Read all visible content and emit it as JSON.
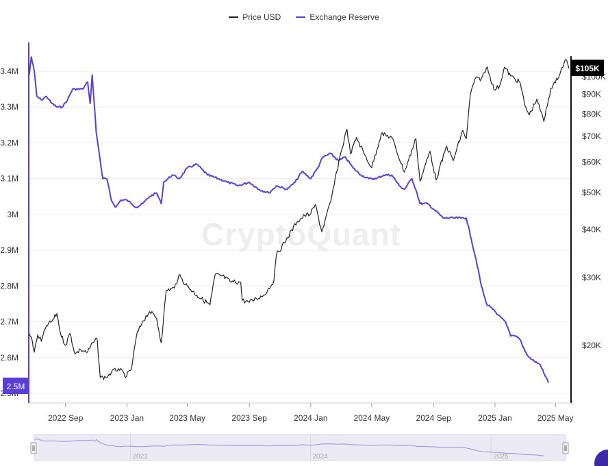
{
  "legend": {
    "price_label": "Price USD",
    "reserve_label": "Exchange Reserve"
  },
  "watermark": "CryptoQuant",
  "badges": {
    "price": "$105K",
    "reserve": "2.5M"
  },
  "colors": {
    "price": "#222222",
    "reserve": "#5a3fd6",
    "grid": "#eeeeee",
    "axis_left": "#5a3fd6",
    "axis_right": "#111111",
    "navigator_fill": "#eceaf4",
    "navigator_line": "#a79be8"
  },
  "chart_data": {
    "type": "line",
    "x_axis": {
      "type": "date",
      "range": [
        "2022-06-20",
        "2025-06-01"
      ],
      "tick_labels": [
        {
          "date": "2022-09-01",
          "label": "2022 Sep"
        },
        {
          "date": "2023-01-01",
          "label": "2023 Jan"
        },
        {
          "date": "2023-05-01",
          "label": "2023 May"
        },
        {
          "date": "2023-09-01",
          "label": "2023 Sep"
        },
        {
          "date": "2024-01-01",
          "label": "2024 Jan"
        },
        {
          "date": "2024-05-01",
          "label": "2024 May"
        },
        {
          "date": "2024-09-01",
          "label": "2024 Sep"
        },
        {
          "date": "2025-01-01",
          "label": "2025 Jan"
        },
        {
          "date": "2025-05-01",
          "label": "2025 May"
        }
      ]
    },
    "y_left": {
      "scale": "linear",
      "range": [
        2500000,
        3450000
      ],
      "ticks": [
        {
          "value": 3400000,
          "label": "3.4M"
        },
        {
          "value": 3300000,
          "label": "3.3M"
        },
        {
          "value": 3200000,
          "label": "3.2M"
        },
        {
          "value": 3100000,
          "label": "3.1M"
        },
        {
          "value": 3000000,
          "label": "3M"
        },
        {
          "value": 2900000,
          "label": "2.9M"
        },
        {
          "value": 2800000,
          "label": "2.8M"
        },
        {
          "value": 2700000,
          "label": "2.7M"
        },
        {
          "value": 2600000,
          "label": "2.6M"
        },
        {
          "value": 2500000,
          "label": "2.5M"
        }
      ]
    },
    "y_right": {
      "scale": "log",
      "range": [
        15000,
        115000
      ],
      "ticks": [
        {
          "value": 100000,
          "label": "$100K"
        },
        {
          "value": 90000,
          "label": "$90K"
        },
        {
          "value": 80000,
          "label": "$80K"
        },
        {
          "value": 70000,
          "label": "$70K"
        },
        {
          "value": 60000,
          "label": "$60K"
        },
        {
          "value": 50000,
          "label": "$50K"
        },
        {
          "value": 40000,
          "label": "$40K"
        },
        {
          "value": 30000,
          "label": "$30K"
        },
        {
          "value": 20000,
          "label": "$20K"
        }
      ]
    },
    "series": [
      {
        "name": "Exchange Reserve",
        "axis": "left",
        "points": [
          [
            "2022-06-21",
            3390000
          ],
          [
            "2022-06-25",
            3440000
          ],
          [
            "2022-07-01",
            3400000
          ],
          [
            "2022-07-06",
            3330000
          ],
          [
            "2022-07-15",
            3320000
          ],
          [
            "2022-07-25",
            3330000
          ],
          [
            "2022-08-05",
            3310000
          ],
          [
            "2022-08-15",
            3300000
          ],
          [
            "2022-08-25",
            3300000
          ],
          [
            "2022-09-05",
            3320000
          ],
          [
            "2022-09-15",
            3350000
          ],
          [
            "2022-09-25",
            3350000
          ],
          [
            "2022-10-05",
            3350000
          ],
          [
            "2022-10-15",
            3370000
          ],
          [
            "2022-10-20",
            3310000
          ],
          [
            "2022-10-24",
            3390000
          ],
          [
            "2022-11-01",
            3230000
          ],
          [
            "2022-11-08",
            3160000
          ],
          [
            "2022-11-14",
            3100000
          ],
          [
            "2022-11-22",
            3100000
          ],
          [
            "2022-12-01",
            3040000
          ],
          [
            "2022-12-10",
            3020000
          ],
          [
            "2022-12-20",
            3040000
          ],
          [
            "2023-01-01",
            3040000
          ],
          [
            "2023-01-10",
            3030000
          ],
          [
            "2023-01-20",
            3020000
          ],
          [
            "2023-02-01",
            3030000
          ],
          [
            "2023-02-15",
            3050000
          ],
          [
            "2023-03-01",
            3060000
          ],
          [
            "2023-03-10",
            3030000
          ],
          [
            "2023-03-15",
            3090000
          ],
          [
            "2023-04-01",
            3110000
          ],
          [
            "2023-04-15",
            3100000
          ],
          [
            "2023-05-01",
            3130000
          ],
          [
            "2023-05-20",
            3140000
          ],
          [
            "2023-06-10",
            3110000
          ],
          [
            "2023-07-01",
            3100000
          ],
          [
            "2023-07-20",
            3090000
          ],
          [
            "2023-08-10",
            3080000
          ],
          [
            "2023-09-01",
            3090000
          ],
          [
            "2023-09-20",
            3070000
          ],
          [
            "2023-10-10",
            3060000
          ],
          [
            "2023-10-25",
            3080000
          ],
          [
            "2023-11-15",
            3070000
          ],
          [
            "2023-12-01",
            3090000
          ],
          [
            "2023-12-15",
            3120000
          ],
          [
            "2024-01-01",
            3100000
          ],
          [
            "2024-01-15",
            3130000
          ],
          [
            "2024-01-25",
            3160000
          ],
          [
            "2024-02-10",
            3170000
          ],
          [
            "2024-02-25",
            3150000
          ],
          [
            "2024-03-10",
            3160000
          ],
          [
            "2024-03-25",
            3130000
          ],
          [
            "2024-04-10",
            3110000
          ],
          [
            "2024-04-25",
            3100000
          ],
          [
            "2024-05-10",
            3100000
          ],
          [
            "2024-05-25",
            3110000
          ],
          [
            "2024-06-10",
            3110000
          ],
          [
            "2024-06-25",
            3080000
          ],
          [
            "2024-07-05",
            3070000
          ],
          [
            "2024-07-20",
            3100000
          ],
          [
            "2024-07-30",
            3060000
          ],
          [
            "2024-08-05",
            3030000
          ],
          [
            "2024-08-20",
            3030000
          ],
          [
            "2024-09-05",
            3010000
          ],
          [
            "2024-09-20",
            2990000
          ],
          [
            "2024-10-10",
            2990000
          ],
          [
            "2024-10-25",
            2990000
          ],
          [
            "2024-11-05",
            2990000
          ],
          [
            "2024-11-15",
            2930000
          ],
          [
            "2024-11-25",
            2870000
          ],
          [
            "2024-12-05",
            2800000
          ],
          [
            "2024-12-15",
            2750000
          ],
          [
            "2024-12-25",
            2740000
          ],
          [
            "2025-01-05",
            2720000
          ],
          [
            "2025-01-15",
            2710000
          ],
          [
            "2025-01-22",
            2700000
          ],
          [
            "2025-02-01",
            2660000
          ],
          [
            "2025-02-10",
            2660000
          ],
          [
            "2025-02-20",
            2650000
          ],
          [
            "2025-03-01",
            2620000
          ],
          [
            "2025-03-10",
            2600000
          ],
          [
            "2025-03-20",
            2590000
          ],
          [
            "2025-04-01",
            2580000
          ],
          [
            "2025-04-10",
            2550000
          ],
          [
            "2025-04-18",
            2530000
          ]
        ]
      },
      {
        "name": "Price USD",
        "axis": "right",
        "points": [
          [
            "2022-06-21",
            21500
          ],
          [
            "2022-06-25",
            21000
          ],
          [
            "2022-07-01",
            19200
          ],
          [
            "2022-07-08",
            21300
          ],
          [
            "2022-07-15",
            20500
          ],
          [
            "2022-07-25",
            22500
          ],
          [
            "2022-08-05",
            23100
          ],
          [
            "2022-08-15",
            24200
          ],
          [
            "2022-08-22",
            21500
          ],
          [
            "2022-09-01",
            20000
          ],
          [
            "2022-09-10",
            21500
          ],
          [
            "2022-09-20",
            19000
          ],
          [
            "2022-10-01",
            19500
          ],
          [
            "2022-10-15",
            19200
          ],
          [
            "2022-10-25",
            20300
          ],
          [
            "2022-11-03",
            20700
          ],
          [
            "2022-11-09",
            16500
          ],
          [
            "2022-11-20",
            16500
          ],
          [
            "2022-12-01",
            17000
          ],
          [
            "2022-12-15",
            17400
          ],
          [
            "2022-12-31",
            16600
          ],
          [
            "2023-01-10",
            17400
          ],
          [
            "2023-01-20",
            21200
          ],
          [
            "2023-02-01",
            23100
          ],
          [
            "2023-02-15",
            24500
          ],
          [
            "2023-03-01",
            23500
          ],
          [
            "2023-03-10",
            20300
          ],
          [
            "2023-03-20",
            27800
          ],
          [
            "2023-04-05",
            28200
          ],
          [
            "2023-04-14",
            30400
          ],
          [
            "2023-05-01",
            28500
          ],
          [
            "2023-05-20",
            27000
          ],
          [
            "2023-06-15",
            25500
          ],
          [
            "2023-06-25",
            30500
          ],
          [
            "2023-07-10",
            30300
          ],
          [
            "2023-07-25",
            29300
          ],
          [
            "2023-08-15",
            29200
          ],
          [
            "2023-08-18",
            26200
          ],
          [
            "2023-09-01",
            25900
          ],
          [
            "2023-09-15",
            26500
          ],
          [
            "2023-09-30",
            27000
          ],
          [
            "2023-10-20",
            29500
          ],
          [
            "2023-10-25",
            34500
          ],
          [
            "2023-11-10",
            37000
          ],
          [
            "2023-12-05",
            42000
          ],
          [
            "2023-12-20",
            43500
          ],
          [
            "2024-01-01",
            44000
          ],
          [
            "2024-01-10",
            46500
          ],
          [
            "2024-01-23",
            39500
          ],
          [
            "2024-02-10",
            47500
          ],
          [
            "2024-02-28",
            62000
          ],
          [
            "2024-03-13",
            73000
          ],
          [
            "2024-03-20",
            63000
          ],
          [
            "2024-04-01",
            69500
          ],
          [
            "2024-04-15",
            63500
          ],
          [
            "2024-05-01",
            58000
          ],
          [
            "2024-05-20",
            71000
          ],
          [
            "2024-06-10",
            69500
          ],
          [
            "2024-07-05",
            56500
          ],
          [
            "2024-07-28",
            69000
          ],
          [
            "2024-08-05",
            53500
          ],
          [
            "2024-08-25",
            64000
          ],
          [
            "2024-09-06",
            53900
          ],
          [
            "2024-09-27",
            66000
          ],
          [
            "2024-10-10",
            60500
          ],
          [
            "2024-10-29",
            72500
          ],
          [
            "2024-11-05",
            69000
          ],
          [
            "2024-11-13",
            90000
          ],
          [
            "2024-11-22",
            98500
          ],
          [
            "2024-12-05",
            99000
          ],
          [
            "2024-12-17",
            106000
          ],
          [
            "2024-12-30",
            92500
          ],
          [
            "2025-01-10",
            94500
          ],
          [
            "2025-01-20",
            106000
          ],
          [
            "2025-02-01",
            100500
          ],
          [
            "2025-02-20",
            96500
          ],
          [
            "2025-03-01",
            84500
          ],
          [
            "2025-03-10",
            79500
          ],
          [
            "2025-03-25",
            87500
          ],
          [
            "2025-04-08",
            76500
          ],
          [
            "2025-04-22",
            93500
          ],
          [
            "2025-05-01",
            96500
          ],
          [
            "2025-05-12",
            104000
          ],
          [
            "2025-05-22",
            111000
          ],
          [
            "2025-05-28",
            105000
          ]
        ]
      }
    ],
    "grid": true,
    "legend_position": "top-center"
  },
  "navigator": {
    "labels": [
      {
        "date": "2023-01-01",
        "label": "2023"
      },
      {
        "date": "2024-01-01",
        "label": "2024"
      },
      {
        "date": "2025-01-01",
        "label": "2025"
      }
    ]
  }
}
